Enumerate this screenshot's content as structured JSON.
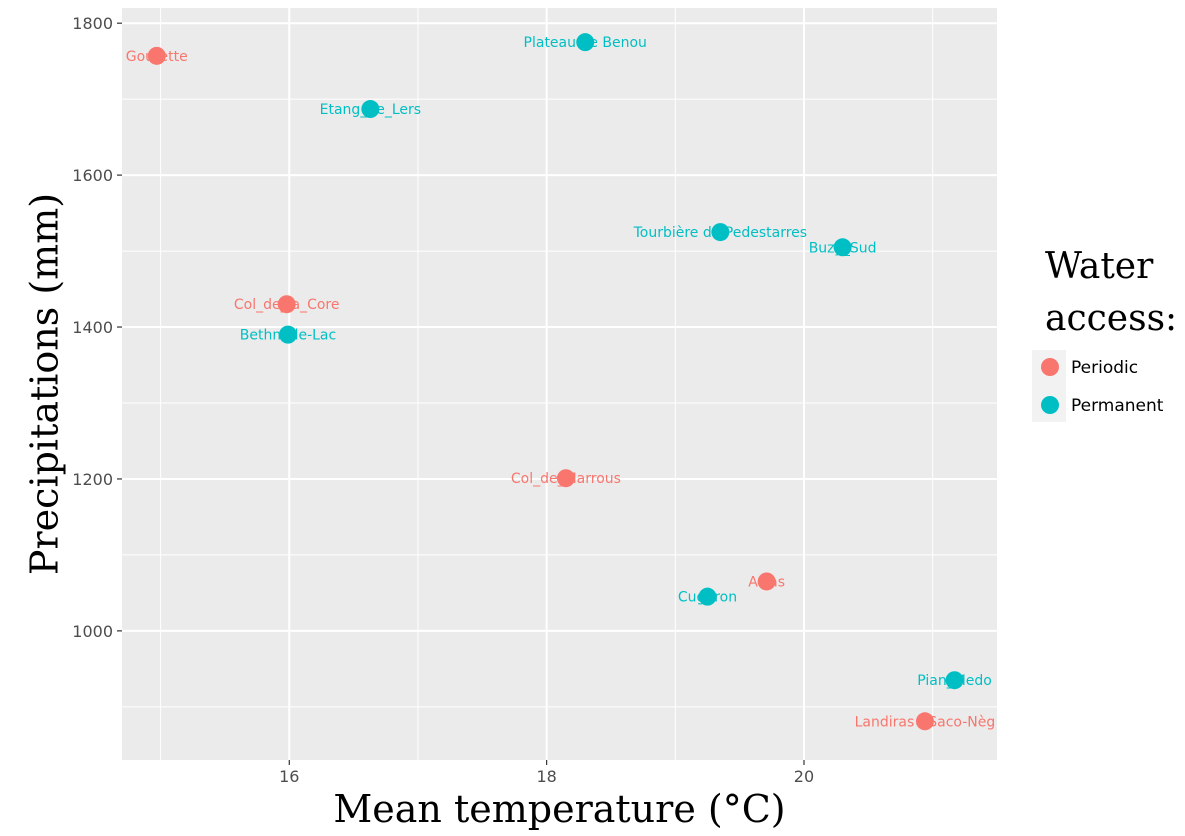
{
  "chart_data": {
    "type": "scatter",
    "title": "",
    "xlabel": "Mean temperature (°C)",
    "ylabel": "Precipitations (mm)",
    "xlim": [
      14.7,
      21.5
    ],
    "ylim": [
      830,
      1820
    ],
    "x_ticks": [
      16,
      18,
      20
    ],
    "y_ticks": [
      1000,
      1200,
      1400,
      1600,
      1800
    ],
    "grid": true,
    "legend": {
      "title_lines": [
        "Water",
        "access:"
      ],
      "placement": "right",
      "entries": [
        {
          "label": "Periodic",
          "color": "#f8766d"
        },
        {
          "label": "Permanent",
          "color": "#00bfc4"
        }
      ]
    },
    "colors": {
      "Periodic": "#f8766d",
      "Permanent": "#00bfc4",
      "panel_background": "#ebebeb",
      "grid": "#ffffff"
    },
    "points": [
      {
        "label": "Gourette",
        "x": 14.97,
        "y": 1757,
        "group": "Periodic"
      },
      {
        "label": "Plateau de Benou",
        "x": 18.3,
        "y": 1775,
        "group": "Permanent"
      },
      {
        "label": "Etang_de_Lers",
        "x": 16.63,
        "y": 1687,
        "group": "Permanent"
      },
      {
        "label": "Tourbière de Pedestarres",
        "x": 19.35,
        "y": 1525,
        "group": "Permanent"
      },
      {
        "label": "Buzy_Sud",
        "x": 20.3,
        "y": 1505,
        "group": "Permanent"
      },
      {
        "label": "Col_de_la_Core",
        "x": 15.98,
        "y": 1430,
        "group": "Periodic"
      },
      {
        "label": "Bethmale-Lac",
        "x": 15.99,
        "y": 1390,
        "group": "Permanent"
      },
      {
        "label": "Col_de_Marrous",
        "x": 18.15,
        "y": 1201,
        "group": "Periodic"
      },
      {
        "label": "Arras",
        "x": 19.71,
        "y": 1065,
        "group": "Periodic"
      },
      {
        "label": "Cuguron",
        "x": 19.25,
        "y": 1045,
        "group": "Permanent"
      },
      {
        "label": "Pian_Medo",
        "x": 21.17,
        "y": 935,
        "group": "Permanent"
      },
      {
        "label": "Landiras - Saco-Nèg",
        "x": 20.94,
        "y": 881,
        "group": "Periodic"
      }
    ]
  }
}
